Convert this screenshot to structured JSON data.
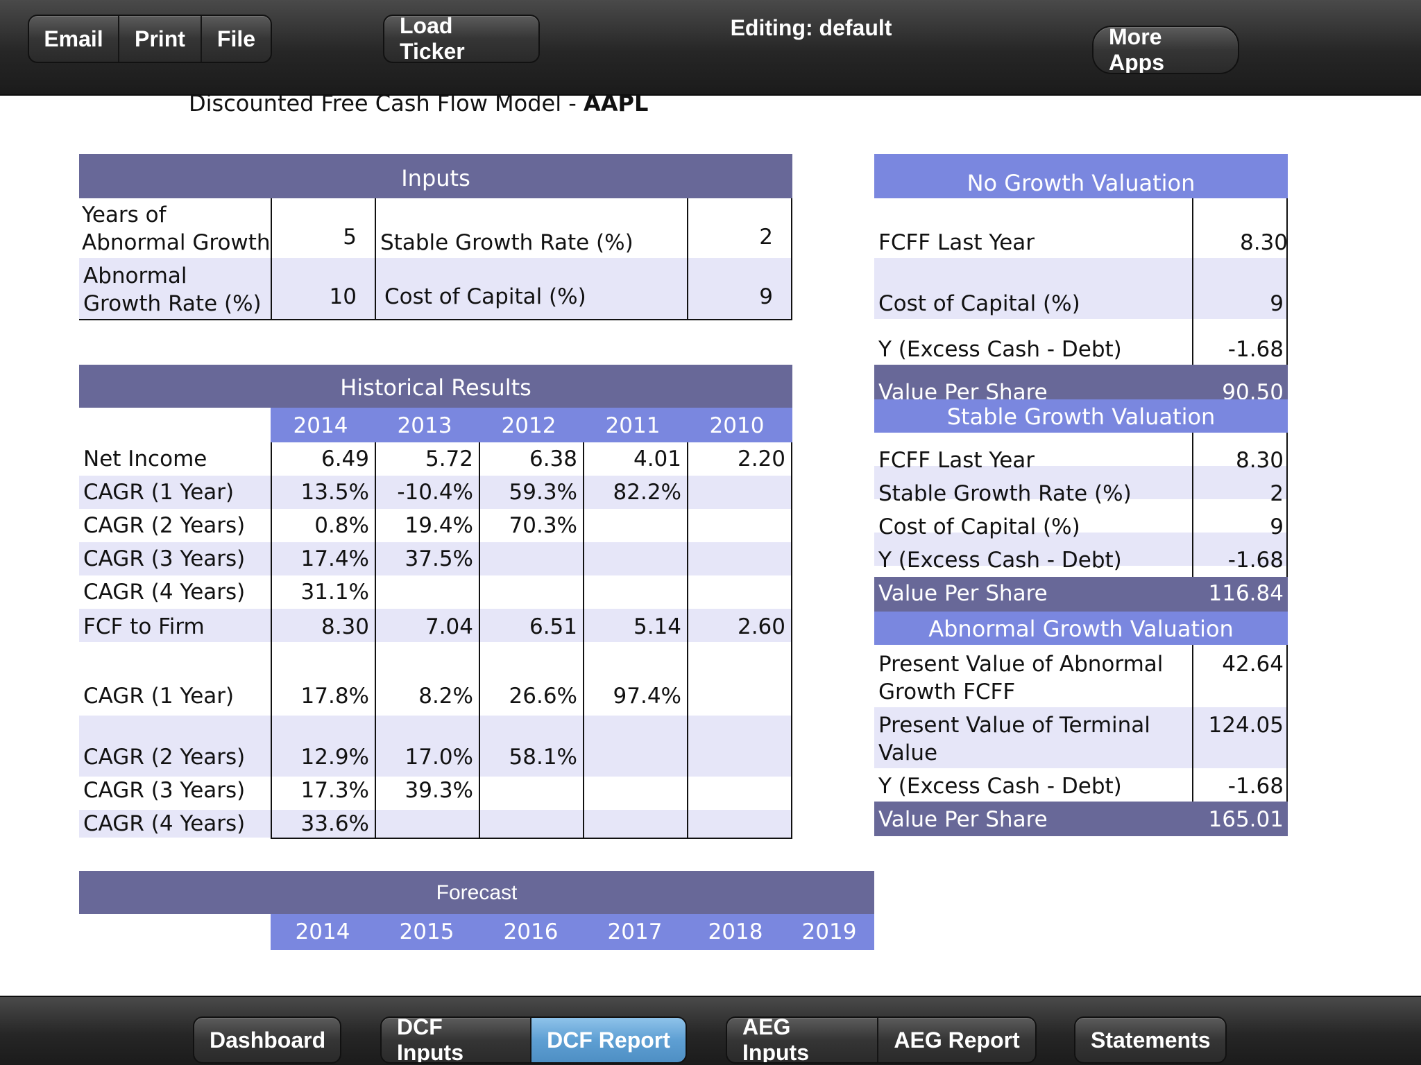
{
  "toolbar": {
    "email": "Email",
    "print": "Print",
    "file": "File",
    "load_ticker": "Load Ticker",
    "editing": "Editing: default",
    "more_apps": "More Apps"
  },
  "title": {
    "prefix": "Discounted Free Cash Flow Model - ",
    "ticker": "AAPL"
  },
  "inputs": {
    "header": "Inputs",
    "years_label_1": "Years of",
    "years_label_2": "Abnormal Growth",
    "years_value": "5",
    "stable_label": "Stable Growth Rate (%)",
    "stable_value": "2",
    "abn_label_1": "Abnormal",
    "abn_label_2": "Growth Rate (%)",
    "abn_value": "10",
    "coc_label": "Cost of Capital (%)",
    "coc_value": "9"
  },
  "historical": {
    "header": "Historical Results",
    "years": [
      "2014",
      "2013",
      "2012",
      "2011",
      "2010"
    ],
    "rows": [
      {
        "label": "Net Income",
        "v": [
          "6.49",
          "5.72",
          "6.38",
          "4.01",
          "2.20"
        ]
      },
      {
        "label": "CAGR (1 Year)",
        "v": [
          "13.5%",
          "-10.4%",
          "59.3%",
          "82.2%",
          ""
        ]
      },
      {
        "label": "CAGR (2 Years)",
        "v": [
          "0.8%",
          "19.4%",
          "70.3%",
          "",
          ""
        ]
      },
      {
        "label": "CAGR (3 Years)",
        "v": [
          "17.4%",
          "37.5%",
          "",
          "",
          ""
        ]
      },
      {
        "label": "CAGR (4 Years)",
        "v": [
          "31.1%",
          "",
          "",
          "",
          ""
        ]
      },
      {
        "label": "FCF to Firm",
        "v": [
          "8.30",
          "7.04",
          "6.51",
          "5.14",
          "2.60"
        ]
      },
      {
        "label": "CAGR (1 Year)",
        "v": [
          "17.8%",
          "8.2%",
          "26.6%",
          "97.4%",
          ""
        ]
      },
      {
        "label": "CAGR (2 Years)",
        "v": [
          "12.9%",
          "17.0%",
          "58.1%",
          "",
          ""
        ]
      },
      {
        "label": "CAGR (3 Years)",
        "v": [
          "17.3%",
          "39.3%",
          "",
          "",
          ""
        ]
      },
      {
        "label": "CAGR (4 Years)",
        "v": [
          "33.6%",
          "",
          "",
          "",
          ""
        ]
      }
    ]
  },
  "no_growth": {
    "header": "No Growth Valuation",
    "fcff_label": "FCFF Last Year",
    "fcff_value": "8.30",
    "coc_label": "Cost of Capital (%)",
    "coc_value": "9",
    "y_label": "Y (Excess Cash - Debt)",
    "y_value": "-1.68",
    "vps_label": "Value Per Share",
    "vps_value": "90.50"
  },
  "stable_growth": {
    "header": "Stable Growth Valuation",
    "fcff_label": "FCFF Last Year",
    "fcff_value": "8.30",
    "sgr_label": "Stable Growth Rate (%)",
    "sgr_value": "2",
    "coc_label": "Cost of Capital (%)",
    "coc_value": "9",
    "y_label": "Y (Excess Cash - Debt)",
    "y_value": "-1.68",
    "vps_label": "Value Per Share",
    "vps_value": "116.84"
  },
  "abnormal_growth": {
    "header": "Abnormal Growth Valuation",
    "pv_abn_label_1": "Present Value of Abnormal",
    "pv_abn_label_2": "Growth FCFF",
    "pv_abn_value": "42.64",
    "pv_term_label_1": "Present Value of Terminal",
    "pv_term_label_2": "Value",
    "pv_term_value": "124.05",
    "y_label": "Y (Excess Cash - Debt)",
    "y_value": "-1.68",
    "vps_label": "Value Per Share",
    "vps_value": "165.01"
  },
  "forecast": {
    "header": "Forecast",
    "years": [
      "2014",
      "2015",
      "2016",
      "2017",
      "2018",
      "2019"
    ]
  },
  "bottom_tabs": {
    "dashboard": "Dashboard",
    "dcf_inputs": "DCF Inputs",
    "dcf_report": "DCF Report",
    "aeg_inputs": "AEG Inputs",
    "aeg_report": "AEG Report",
    "statements": "Statements"
  }
}
